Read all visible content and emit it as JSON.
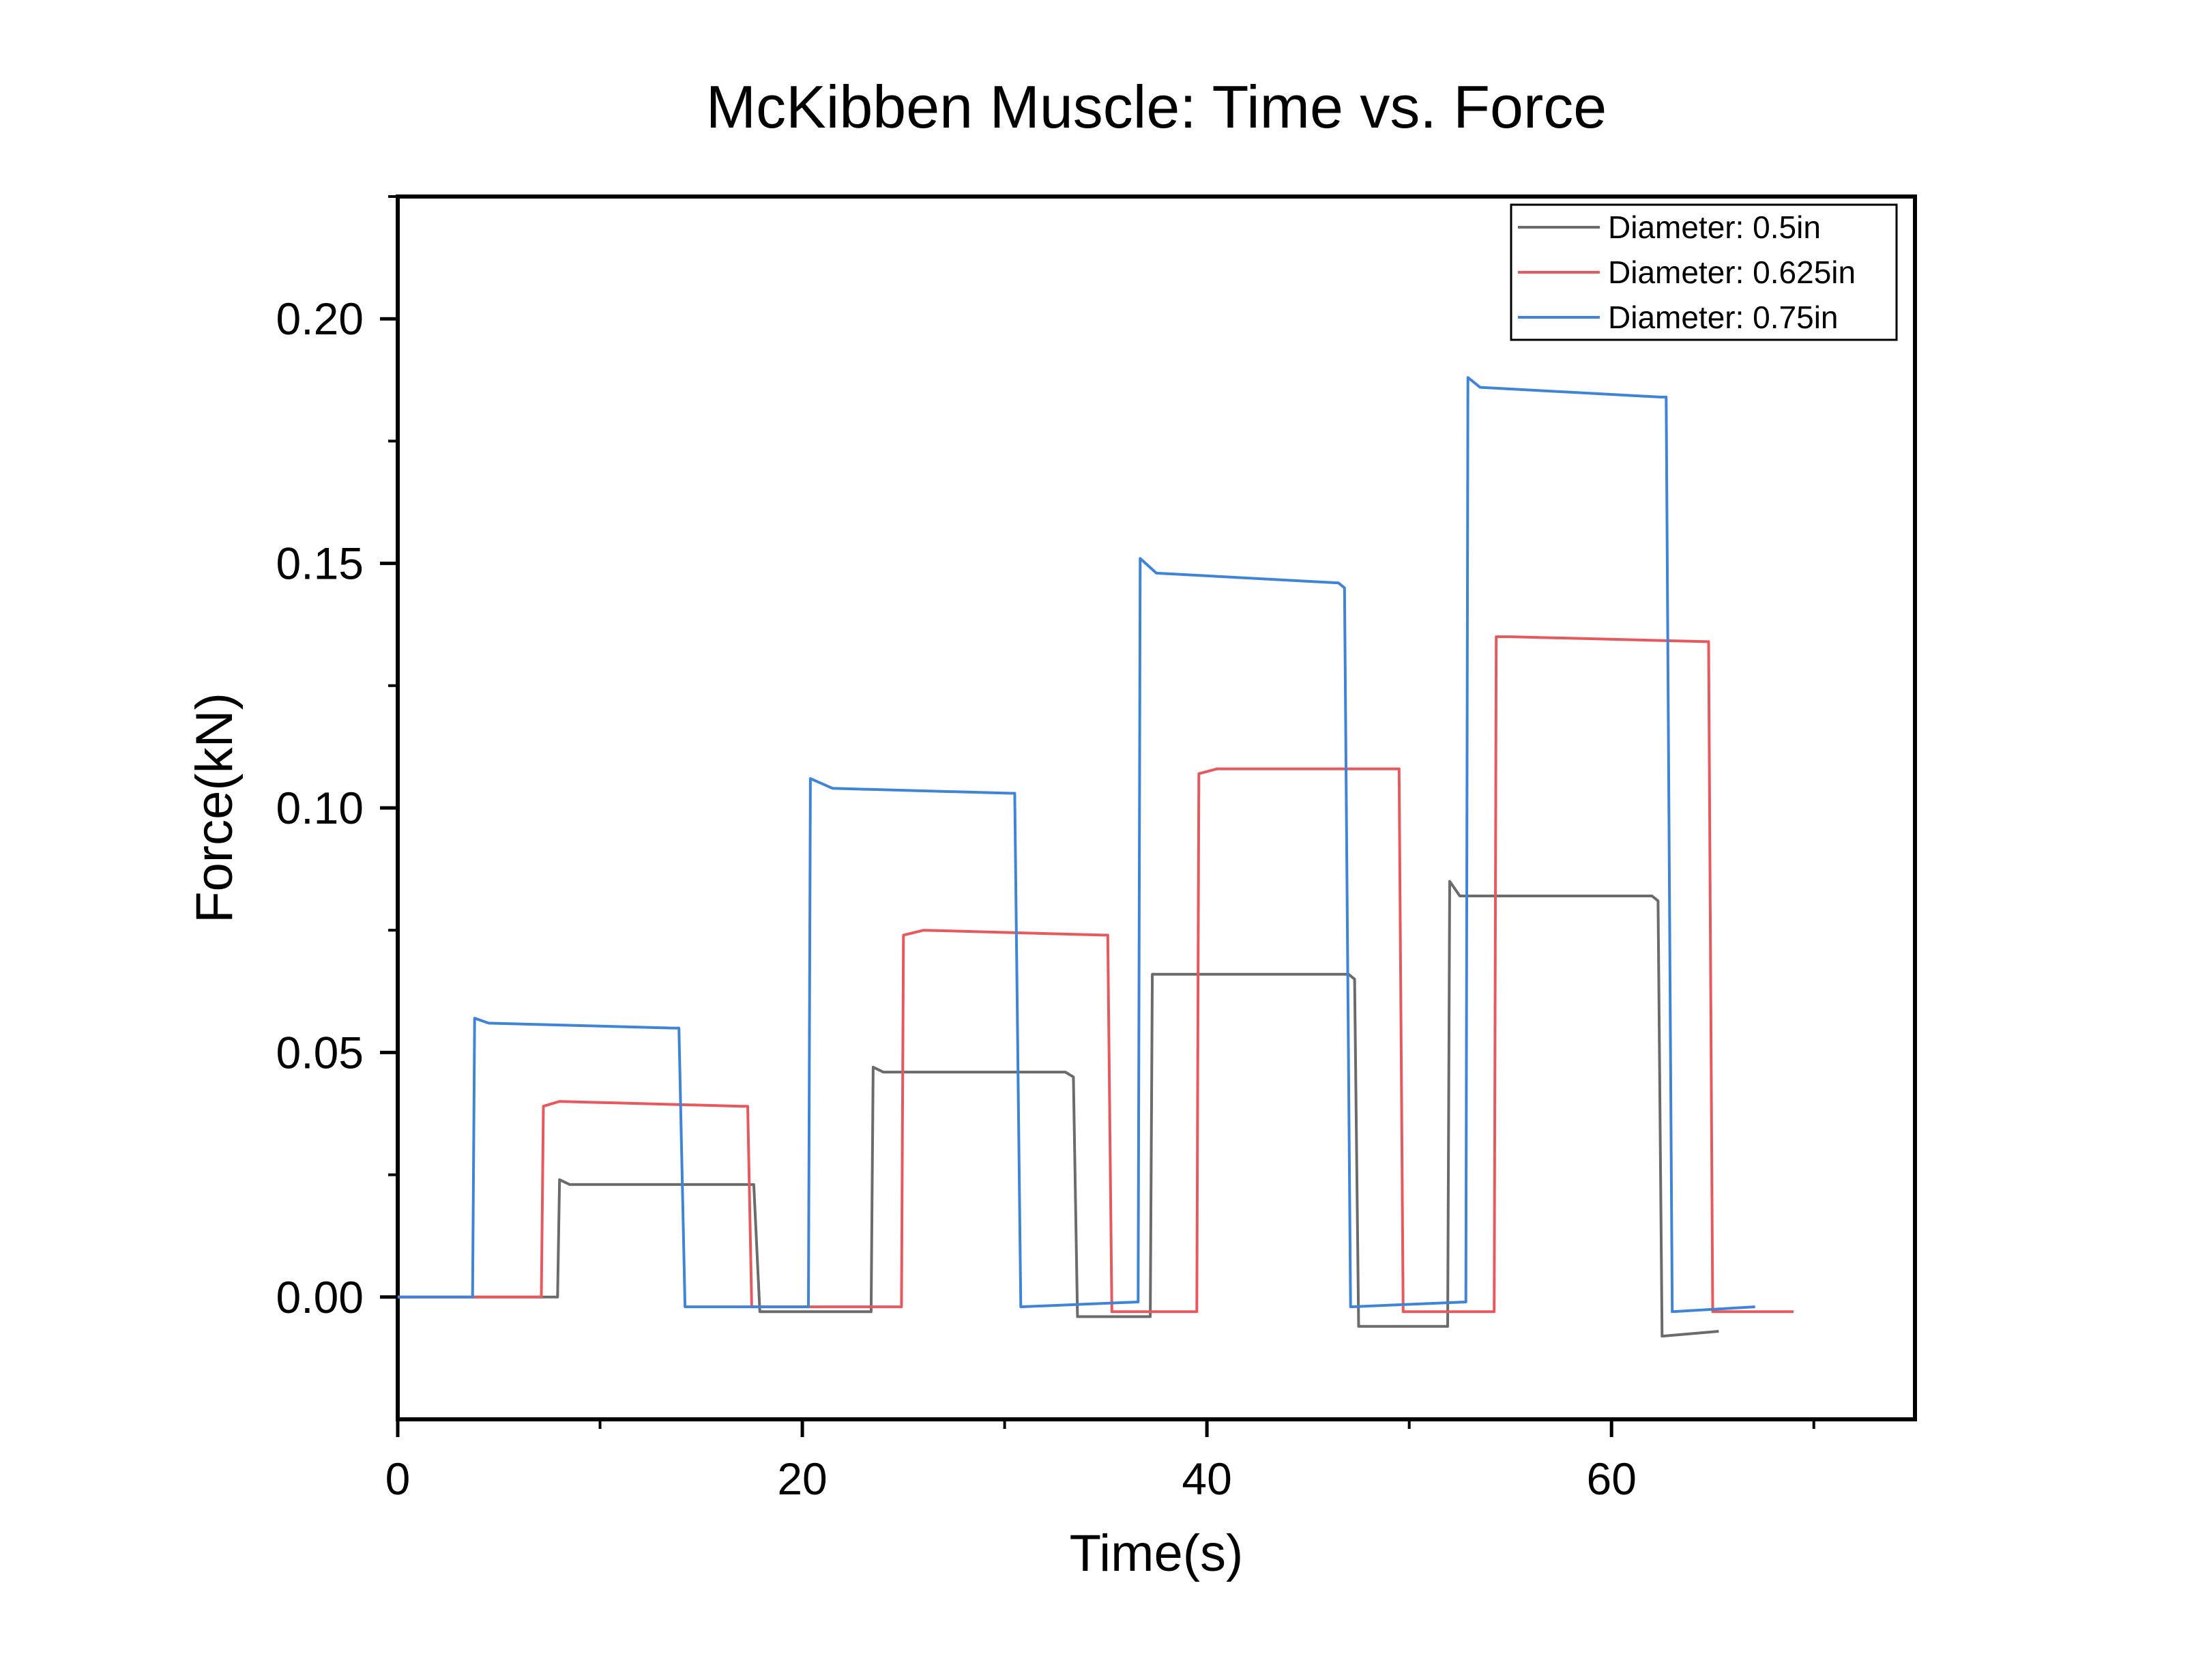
{
  "chart_data": {
    "type": "line",
    "title": "McKibben Muscle: Time vs. Force",
    "xlabel": "Time(s)",
    "ylabel": "Force(kN)",
    "xlim": [
      0,
      75
    ],
    "ylim": [
      -0.025,
      0.225
    ],
    "xticks": [
      0,
      20,
      40,
      60
    ],
    "xtick_labels": [
      "0",
      "20",
      "40",
      "60"
    ],
    "yticks": [
      0.0,
      0.05,
      0.1,
      0.15,
      0.2
    ],
    "ytick_labels": [
      "0.00",
      "0.05",
      "0.10",
      "0.15",
      "0.20"
    ],
    "grid": false,
    "legend_position": "top-right",
    "series": [
      {
        "name": "Diameter: 0.5in",
        "color": "#6b6b6b",
        "x": [
          0,
          7.9,
          8.0,
          8.5,
          12,
          17.6,
          17.9,
          23.4,
          23.5,
          24,
          33,
          33.4,
          33.6,
          37.2,
          37.3,
          38,
          47,
          47.3,
          47.5,
          51.9,
          52,
          52.5,
          62,
          62.3,
          62.5,
          65.3
        ],
        "y": [
          0.0,
          0.0,
          0.024,
          0.023,
          0.023,
          0.023,
          -0.003,
          -0.003,
          0.047,
          0.046,
          0.046,
          0.045,
          -0.004,
          -0.004,
          0.066,
          0.066,
          0.066,
          0.065,
          -0.006,
          -0.006,
          0.085,
          0.082,
          0.082,
          0.081,
          -0.008,
          -0.007
        ]
      },
      {
        "name": "Diameter: 0.625in",
        "color": "#e8595e",
        "x": [
          0,
          7.1,
          7.2,
          8,
          17,
          17.3,
          17.5,
          24.9,
          25,
          26,
          34.9,
          35.1,
          35.3,
          39.5,
          39.6,
          40.5,
          49.2,
          49.5,
          49.7,
          54.2,
          54.3,
          55,
          64.6,
          64.8,
          65,
          69
        ],
        "y": [
          0.0,
          0.0,
          0.039,
          0.04,
          0.039,
          0.039,
          -0.002,
          -0.002,
          0.074,
          0.075,
          0.074,
          0.074,
          -0.003,
          -0.003,
          0.107,
          0.108,
          0.108,
          0.108,
          -0.003,
          -0.003,
          0.135,
          0.135,
          0.134,
          0.134,
          -0.003,
          -0.003
        ]
      },
      {
        "name": "Diameter: 0.75in",
        "color": "#3f84d8",
        "x": [
          0,
          3.7,
          3.8,
          4.5,
          13.6,
          13.9,
          14.2,
          20.3,
          20.4,
          21.5,
          30.3,
          30.5,
          30.8,
          36.6,
          36.7,
          37.5,
          46.5,
          46.8,
          47.1,
          52.8,
          52.9,
          53.5,
          62.4,
          62.7,
          63,
          67.1
        ],
        "y": [
          0.0,
          0.0,
          0.057,
          0.056,
          0.055,
          0.055,
          -0.002,
          -0.002,
          0.106,
          0.104,
          0.103,
          0.103,
          -0.002,
          -0.001,
          0.151,
          0.148,
          0.146,
          0.145,
          -0.002,
          -0.001,
          0.188,
          0.186,
          0.184,
          0.184,
          -0.003,
          -0.002
        ]
      }
    ]
  }
}
